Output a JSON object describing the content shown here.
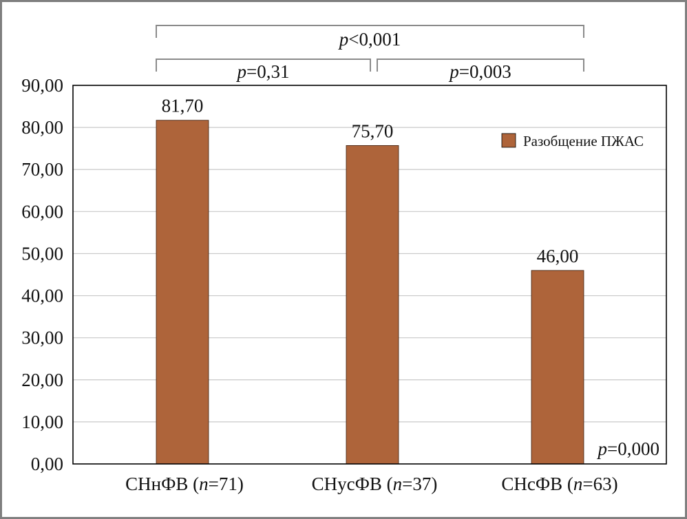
{
  "chart_data": {
    "type": "bar",
    "categories": [
      {
        "name": "СНнФВ",
        "n": "71"
      },
      {
        "name": "СНусФВ",
        "n": "37"
      },
      {
        "name": "СНсФВ",
        "n": "63"
      }
    ],
    "series": [
      {
        "name": "Разобщение ПЖАС",
        "values": [
          81.7,
          75.7,
          46.0
        ],
        "color": "#ae643a"
      }
    ],
    "value_labels": [
      "81,70",
      "75,70",
      "46,00"
    ],
    "y_ticks": [
      "0,00",
      "10,00",
      "20,00",
      "30,00",
      "40,00",
      "50,00",
      "60,00",
      "70,00",
      "80,00",
      "90,00"
    ],
    "ylim": [
      0,
      90
    ],
    "grid": true,
    "legend_position": "top-right",
    "comparisons": [
      {
        "from": 0,
        "to": 2,
        "p_symbol": "p",
        "p_rest": "<0,001",
        "level": "top"
      },
      {
        "from": 0,
        "to": 1,
        "p_symbol": "p",
        "p_rest": "=0,31",
        "level": "lower"
      },
      {
        "from": 1,
        "to": 2,
        "p_symbol": "p",
        "p_rest": "=0,003",
        "level": "lower"
      }
    ],
    "corner_annotation": {
      "p_symbol": "p",
      "p_rest": "=0,000"
    }
  }
}
